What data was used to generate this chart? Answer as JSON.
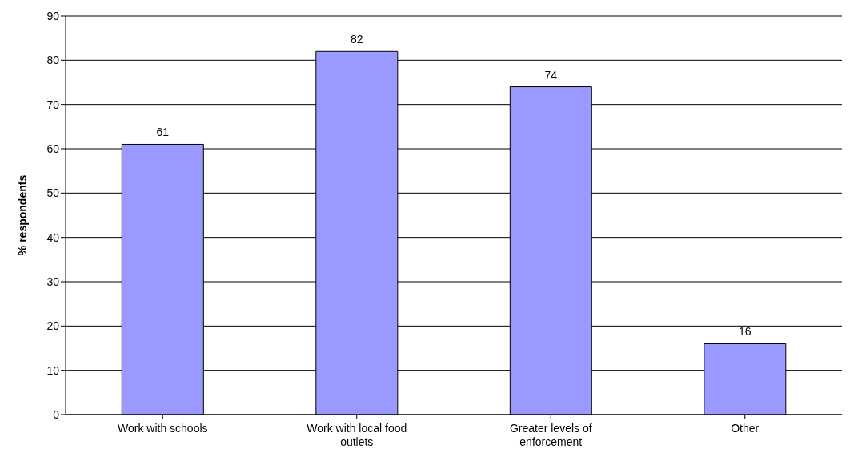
{
  "chart_data": {
    "type": "bar",
    "ylabel": "% respondents",
    "categories": [
      "Work with schools",
      "Work with local food outlets",
      "Greater levels of enforcement",
      "Other"
    ],
    "values": [
      61,
      82,
      74,
      16
    ],
    "color": "#9999ff",
    "ylim": [
      0,
      90
    ],
    "yticks": [
      0,
      10,
      20,
      30,
      40,
      50,
      60,
      70,
      80,
      90
    ],
    "grid": "y",
    "data_labels": true,
    "legend": false
  }
}
